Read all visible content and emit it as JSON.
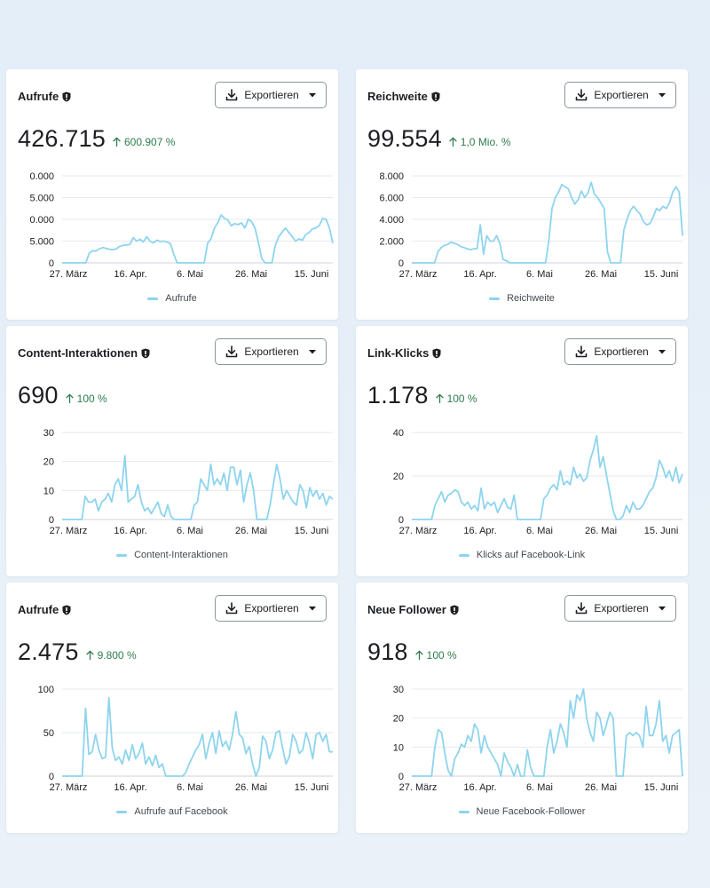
{
  "export_label": "Exportieren",
  "colors": {
    "line": "#8ed4ee",
    "change": "#2e7d4f",
    "grid": "#e6e9ed"
  },
  "x_ticks": [
    "27. März",
    "16. Apr.",
    "6. Mai",
    "26. Mai",
    "15. Juni"
  ],
  "cards": [
    {
      "title": "Aufrufe",
      "value": "426.715",
      "change": "600.907 %",
      "legend": "Aufrufe",
      "chart_data": {
        "type": "line",
        "xlabel": "",
        "ylabel": "",
        "x_ticks": [
          "27. März",
          "16. Apr.",
          "6. Mai",
          "26. Mai",
          "15. Juni"
        ],
        "y_ticks": [
          "0",
          "5.000",
          "0.000",
          "5.000",
          "0.000"
        ],
        "ylim": [
          0,
          20000
        ],
        "series": [
          {
            "values": [
              0,
              0,
              0,
              0,
              0,
              0,
              0,
              0,
              2200,
              2800,
              2700,
              3200,
              3500,
              3300,
              3100,
              3000,
              3200,
              3800,
              4000,
              4100,
              4200,
              5800,
              5000,
              5400,
              4800,
              6000,
              5000,
              4600,
              5200,
              4900,
              5000,
              4800,
              4400,
              2000,
              0,
              0,
              0,
              0,
              0,
              0,
              0,
              0,
              0,
              4500,
              5600,
              8000,
              9200,
              11000,
              10200,
              9800,
              8500,
              9000,
              8800,
              9200,
              8000,
              10000,
              9500,
              8000,
              4800,
              1000,
              0,
              0,
              0,
              4000,
              6000,
              7000,
              8000,
              7000,
              6000,
              5000,
              5500,
              5200,
              6500,
              7000,
              7800,
              8000,
              8600,
              10200,
              10000,
              8000,
              4500
            ]
          }
        ]
      }
    },
    {
      "title": "Reichweite",
      "value": "99.554",
      "change": "1,0 Mio. %",
      "legend": "Reichweite",
      "chart_data": {
        "type": "line",
        "xlabel": "",
        "ylabel": "",
        "x_ticks": [
          "27. März",
          "16. Apr.",
          "6. Mai",
          "26. Mai",
          "15. Juni"
        ],
        "y_ticks": [
          "0",
          "2.000",
          "4.000",
          "6.000",
          "8.000"
        ],
        "ylim": [
          0,
          8000
        ],
        "series": [
          {
            "values": [
              0,
              0,
              0,
              0,
              0,
              0,
              0,
              0,
              1000,
              1400,
              1600,
              1700,
              1900,
              1800,
              1700,
              1500,
              1400,
              1300,
              1200,
              1300,
              1300,
              3500,
              800,
              2500,
              2000,
              2000,
              2500,
              1800,
              300,
              200,
              0,
              0,
              0,
              0,
              0,
              0,
              0,
              0,
              0,
              0,
              0,
              0,
              2000,
              5000,
              6000,
              6500,
              7200,
              7000,
              6800,
              6000,
              5400,
              5800,
              6600,
              6000,
              6400,
              7400,
              6300,
              6000,
              5500,
              5000,
              1000,
              0,
              0,
              0,
              0,
              3000,
              4000,
              4800,
              5200,
              4800,
              4500,
              3800,
              3500,
              3600,
              4200,
              5000,
              4800,
              5200,
              5000,
              5500,
              6500,
              7000,
              6500,
              2500
            ]
          }
        ]
      }
    },
    {
      "title": "Content-Interaktionen",
      "value": "690",
      "change": "100 %",
      "legend": "Content-Interaktionen",
      "chart_data": {
        "type": "line",
        "xlabel": "",
        "ylabel": "",
        "x_ticks": [
          "27. März",
          "16. Apr.",
          "6. Mai",
          "26. Mai",
          "15. Juni"
        ],
        "y_ticks": [
          "0",
          "10",
          "20",
          "30"
        ],
        "ylim": [
          0,
          30
        ],
        "series": [
          {
            "values": [
              0,
              0,
              0,
              0,
              0,
              0,
              0,
              8,
              6,
              6,
              7,
              3,
              6,
              7,
              9,
              6,
              12,
              14,
              10,
              22,
              6,
              7,
              8,
              12,
              6,
              3,
              4,
              2,
              4,
              6,
              2,
              1,
              5,
              1,
              0,
              0,
              0,
              0,
              0,
              0,
              5,
              6,
              14,
              12,
              10,
              19,
              12,
              14,
              12,
              16,
              10,
              18,
              18,
              12,
              17,
              6,
              12,
              16,
              10,
              0,
              0,
              0,
              0,
              5,
              12,
              19,
              14,
              7,
              10,
              8,
              6,
              5,
              12,
              10,
              4,
              11,
              8,
              10,
              7,
              9,
              5,
              8,
              7
            ]
          }
        ]
      }
    },
    {
      "title": "Link-Klicks",
      "value": "1.178",
      "change": "100 %",
      "legend": "Klicks auf Facebook-Link",
      "chart_data": {
        "type": "line",
        "xlabel": "",
        "ylabel": "",
        "x_ticks": [
          "27. März",
          "16. Apr.",
          "6. Mai",
          "26. Mai",
          "15. Juni"
        ],
        "y_ticks": [
          "0",
          "20",
          "40"
        ],
        "ylim": [
          0,
          50
        ],
        "series": [
          {
            "values": [
              0,
              0,
              0,
              0,
              0,
              0,
              0,
              8,
              12,
              16,
              10,
              14,
              15,
              17,
              16,
              10,
              8,
              10,
              6,
              8,
              5,
              18,
              6,
              10,
              8,
              10,
              4,
              8,
              12,
              7,
              6,
              14,
              0,
              0,
              0,
              0,
              0,
              0,
              0,
              0,
              12,
              14,
              18,
              20,
              17,
              28,
              20,
              22,
              20,
              30,
              24,
              26,
              22,
              24,
              34,
              40,
              48,
              30,
              36,
              25,
              15,
              5,
              0,
              0,
              2,
              8,
              4,
              10,
              6,
              6,
              8,
              12,
              16,
              18,
              24,
              34,
              30,
              24,
              28,
              22,
              30,
              21,
              26
            ]
          }
        ]
      }
    },
    {
      "title": "Aufrufe",
      "value": "2.475",
      "change": "9.800 %",
      "legend": "Aufrufe auf Facebook",
      "chart_data": {
        "type": "line",
        "xlabel": "",
        "ylabel": "",
        "x_ticks": [
          "27. März",
          "16. Apr.",
          "6. Mai",
          "26. Mai",
          "15. Juni"
        ],
        "y_ticks": [
          "0",
          "50",
          "100"
        ],
        "ylim": [
          0,
          100
        ],
        "series": [
          {
            "values": [
              0,
              0,
              0,
              0,
              0,
              0,
              0,
              78,
              25,
              28,
              48,
              30,
              20,
              22,
              90,
              32,
              18,
              22,
              14,
              30,
              18,
              36,
              20,
              26,
              38,
              14,
              22,
              12,
              24,
              10,
              14,
              0,
              0,
              0,
              0,
              0,
              0,
              4,
              14,
              22,
              30,
              36,
              48,
              20,
              38,
              50,
              26,
              52,
              34,
              40,
              30,
              48,
              74,
              48,
              44,
              26,
              34,
              14,
              0,
              10,
              46,
              40,
              20,
              30,
              50,
              52,
              32,
              14,
              22,
              48,
              40,
              26,
              30,
              50,
              38,
              20,
              48,
              50,
              40,
              48,
              28,
              28
            ]
          }
        ]
      }
    },
    {
      "title": "Neue Follower",
      "value": "918",
      "change": "100 %",
      "legend": "Neue Facebook-Follower",
      "chart_data": {
        "type": "line",
        "xlabel": "",
        "ylabel": "",
        "x_ticks": [
          "27. März",
          "16. Apr.",
          "6. Mai",
          "26. Mai",
          "15. Juni"
        ],
        "y_ticks": [
          "0",
          "10",
          "20",
          "30"
        ],
        "ylim": [
          0,
          30
        ],
        "series": [
          {
            "values": [
              0,
              0,
              0,
              0,
              0,
              0,
              0,
              10,
              16,
              15,
              8,
              2,
              0,
              6,
              8,
              11,
              10,
              14,
              12,
              18,
              16,
              8,
              14,
              10,
              8,
              6,
              4,
              0,
              8,
              5,
              3,
              0,
              4,
              0,
              0,
              9,
              3,
              0,
              0,
              0,
              0,
              10,
              16,
              8,
              12,
              18,
              15,
              10,
              26,
              20,
              28,
              26,
              30,
              20,
              15,
              12,
              22,
              20,
              14,
              18,
              22,
              20,
              0,
              0,
              0,
              14,
              15,
              14,
              15,
              14,
              10,
              24,
              14,
              14,
              18,
              26,
              12,
              14,
              8,
              14,
              15,
              16,
              0
            ]
          }
        ]
      }
    }
  ]
}
